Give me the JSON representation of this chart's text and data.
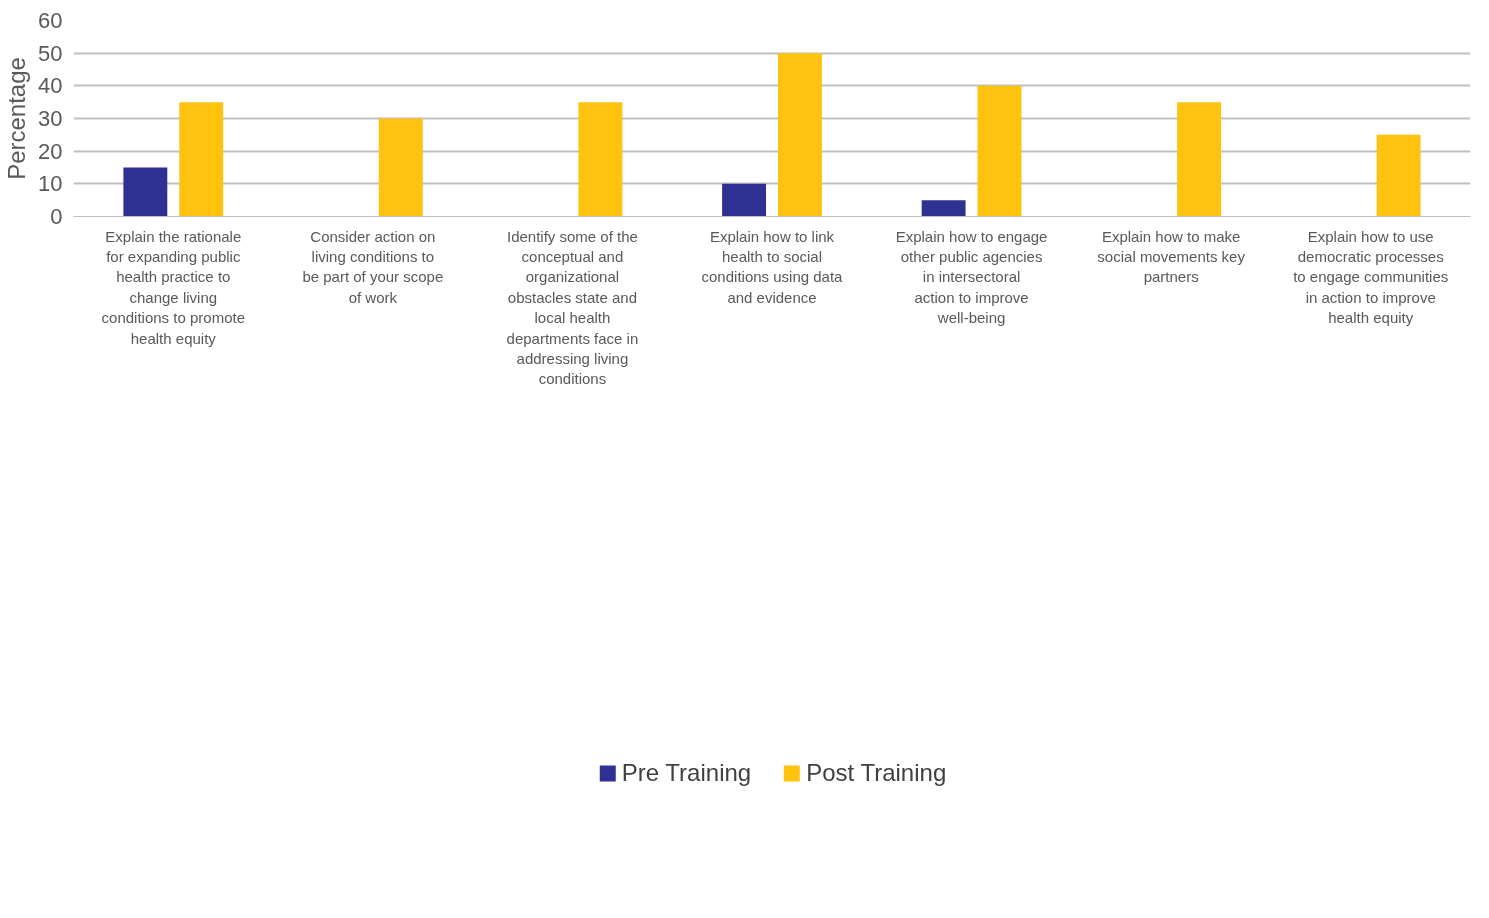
{
  "chart_data": {
    "type": "bar",
    "ylabel": "Percentage",
    "categories": [
      "Explain the rationale for expanding public health practice to change living conditions to promote health equity",
      "Consider action on living conditions to be part of your scope of work",
      "Identify some of the conceptual and organizational obstacles state and local health departments face in addressing living conditions",
      "Explain how to link health to social conditions using data and evidence",
      "Explain how to engage other public agencies in intersectoral action to improve well-being",
      "Explain how to make social movements key partners",
      "Explain how to use democratic processes to engage communities in action to improve health equity"
    ],
    "series": [
      {
        "name": "Pre Training",
        "color": "#2e3192",
        "values": [
          15,
          0,
          0,
          10,
          5,
          0,
          0
        ]
      },
      {
        "name": "Post Training",
        "color": "#ffc20e",
        "values": [
          35,
          30,
          35,
          50,
          40,
          35,
          25
        ]
      }
    ],
    "ylim": [
      0,
      60
    ],
    "yticks": [
      0,
      10,
      20,
      30,
      40,
      50,
      60
    ],
    "grid": "y",
    "legend": "bottom"
  }
}
